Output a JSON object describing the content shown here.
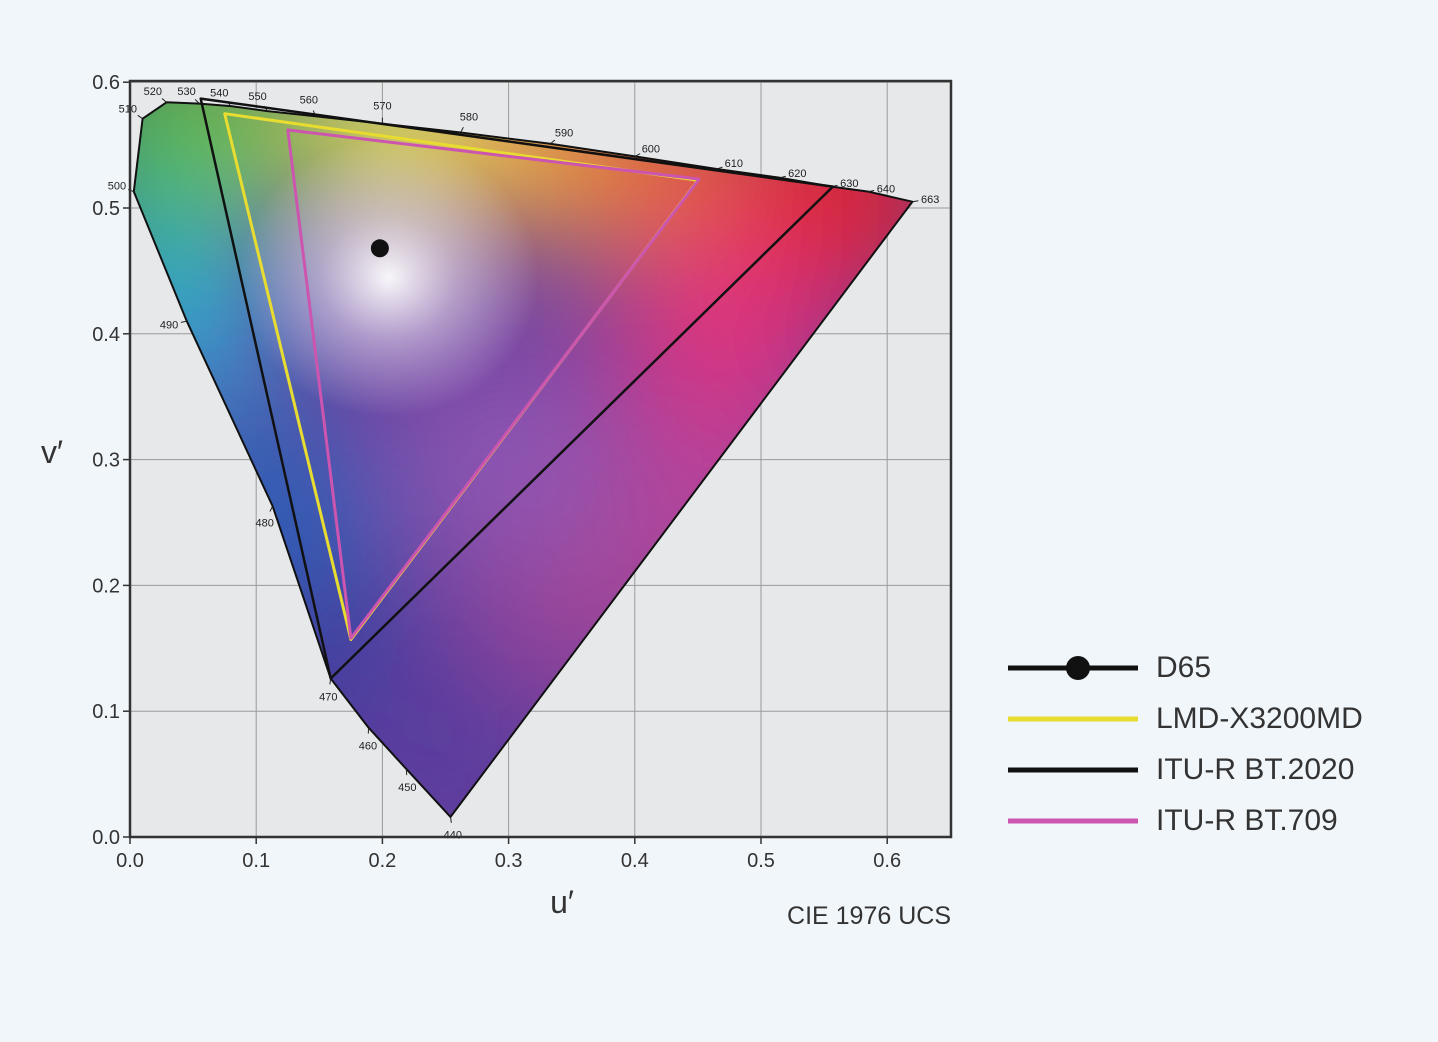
{
  "chart_data": {
    "type": "scatter",
    "title": "",
    "footer_label": "CIE 1976 UCS",
    "xlabel": "u′",
    "ylabel": "v′",
    "xlim": [
      0,
      0.65
    ],
    "ylim": [
      0,
      0.6
    ],
    "xticks": [
      "0.0",
      "0.1",
      "0.2",
      "0.3",
      "0.4",
      "0.5",
      "0.6"
    ],
    "yticks": [
      "0.0",
      "0.1",
      "0.2",
      "0.3",
      "0.4",
      "0.5",
      "0.6"
    ],
    "grid": true,
    "legend_position": "right",
    "spectral_locus": [
      {
        "nm": 440,
        "u": 0.254,
        "v": 0.016
      },
      {
        "nm": 450,
        "u": 0.219,
        "v": 0.054
      },
      {
        "nm": 460,
        "u": 0.189,
        "v": 0.087
      },
      {
        "nm": 470,
        "u": 0.159,
        "v": 0.126
      },
      {
        "nm": 480,
        "u": 0.113,
        "v": 0.263
      },
      {
        "nm": 490,
        "u": 0.045,
        "v": 0.41
      },
      {
        "nm": 500,
        "u": 0.003,
        "v": 0.513
      },
      {
        "nm": 510,
        "u": 0.01,
        "v": 0.571
      },
      {
        "nm": 520,
        "u": 0.029,
        "v": 0.584
      },
      {
        "nm": 530,
        "u": 0.055,
        "v": 0.583
      },
      {
        "nm": 540,
        "u": 0.08,
        "v": 0.581
      },
      {
        "nm": 550,
        "u": 0.109,
        "v": 0.577
      },
      {
        "nm": 560,
        "u": 0.147,
        "v": 0.573
      },
      {
        "nm": 570,
        "u": 0.2,
        "v": 0.567
      },
      {
        "nm": 580,
        "u": 0.262,
        "v": 0.56
      },
      {
        "nm": 590,
        "u": 0.333,
        "v": 0.551
      },
      {
        "nm": 600,
        "u": 0.4,
        "v": 0.541
      },
      {
        "nm": 610,
        "u": 0.465,
        "v": 0.531
      },
      {
        "nm": 620,
        "u": 0.515,
        "v": 0.524
      },
      {
        "nm": 630,
        "u": 0.556,
        "v": 0.517
      },
      {
        "nm": 640,
        "u": 0.585,
        "v": 0.513
      },
      {
        "nm": 663,
        "u": 0.62,
        "v": 0.505
      }
    ],
    "series": [
      {
        "name": "D65",
        "kind": "point",
        "color": "#111111",
        "points": [
          [
            0.198,
            0.468
          ]
        ]
      },
      {
        "name": "LMD-X3200MD",
        "kind": "triangle",
        "color": "#e8dc30",
        "points": [
          [
            0.075,
            0.575
          ],
          [
            0.45,
            0.522
          ],
          [
            0.175,
            0.157
          ]
        ]
      },
      {
        "name": "ITU-R BT.2020",
        "kind": "triangle",
        "color": "#111111",
        "points": [
          [
            0.056,
            0.587
          ],
          [
            0.557,
            0.517
          ],
          [
            0.159,
            0.126
          ]
        ]
      },
      {
        "name": "ITU-R BT.709",
        "kind": "triangle",
        "color": "#cc55b0",
        "points": [
          [
            0.125,
            0.562
          ],
          [
            0.451,
            0.523
          ],
          [
            0.175,
            0.158
          ]
        ]
      }
    ]
  }
}
